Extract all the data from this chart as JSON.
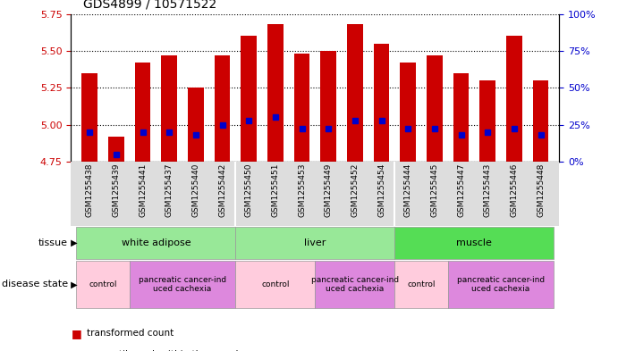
{
  "title": "GDS4899 / 10571522",
  "samples": [
    "GSM1255438",
    "GSM1255439",
    "GSM1255441",
    "GSM1255437",
    "GSM1255440",
    "GSM1255442",
    "GSM1255450",
    "GSM1255451",
    "GSM1255453",
    "GSM1255449",
    "GSM1255452",
    "GSM1255454",
    "GSM1255444",
    "GSM1255445",
    "GSM1255447",
    "GSM1255443",
    "GSM1255446",
    "GSM1255448"
  ],
  "transformed_count": [
    5.35,
    4.92,
    5.42,
    5.47,
    5.25,
    5.47,
    5.6,
    5.68,
    5.48,
    5.5,
    5.68,
    5.55,
    5.42,
    5.47,
    5.35,
    5.3,
    5.6,
    5.3
  ],
  "percentile_rank": [
    20,
    5,
    20,
    20,
    18,
    25,
    28,
    30,
    22,
    22,
    28,
    28,
    22,
    22,
    18,
    20,
    22,
    18
  ],
  "ylim_left": [
    4.75,
    5.75
  ],
  "ylim_right": [
    0,
    100
  ],
  "yticks_left": [
    4.75,
    5.0,
    5.25,
    5.5,
    5.75
  ],
  "yticks_right": [
    0,
    25,
    50,
    75,
    100
  ],
  "bar_color": "#cc0000",
  "marker_color": "#0000cc",
  "bg_color": "#ffffff",
  "bar_width": 0.6,
  "tissue_groups": [
    {
      "label": "white adipose",
      "start": 0,
      "end": 5,
      "color": "#98e898"
    },
    {
      "label": "liver",
      "start": 6,
      "end": 11,
      "color": "#98e898"
    },
    {
      "label": "muscle",
      "start": 12,
      "end": 17,
      "color": "#55dd55"
    }
  ],
  "disease_groups": [
    {
      "label": "control",
      "start": 0,
      "end": 1,
      "color": "#ffccdd"
    },
    {
      "label": "pancreatic cancer-ind\nuced cachexia",
      "start": 2,
      "end": 5,
      "color": "#dd88dd"
    },
    {
      "label": "control",
      "start": 6,
      "end": 8,
      "color": "#ffccdd"
    },
    {
      "label": "pancreatic cancer-ind\nuced cachexia",
      "start": 9,
      "end": 11,
      "color": "#dd88dd"
    },
    {
      "label": "control",
      "start": 12,
      "end": 13,
      "color": "#ffccdd"
    },
    {
      "label": "pancreatic cancer-ind\nuced cachexia",
      "start": 14,
      "end": 17,
      "color": "#dd88dd"
    }
  ],
  "tissue_label": "tissue",
  "disease_label": "disease state",
  "xticklabel_bg": "#dddddd"
}
